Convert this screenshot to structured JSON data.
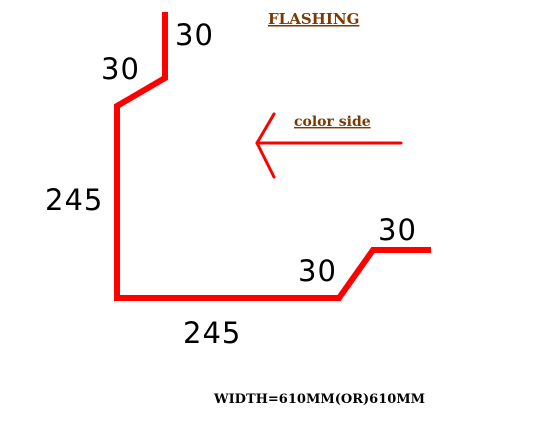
{
  "title": "FLASHING",
  "arrow_label": "color side",
  "dimensions": {
    "top_vertical": "30",
    "top_slope": "30",
    "left_vertical": "245",
    "bottom_horizontal": "245",
    "right_slope": "30",
    "right_horizontal": "30"
  },
  "width_note": "WIDTH=610MM(OR)610MM",
  "colors": {
    "profile": "#ff0000",
    "labels": "#7a3a00",
    "text": "#000000"
  }
}
